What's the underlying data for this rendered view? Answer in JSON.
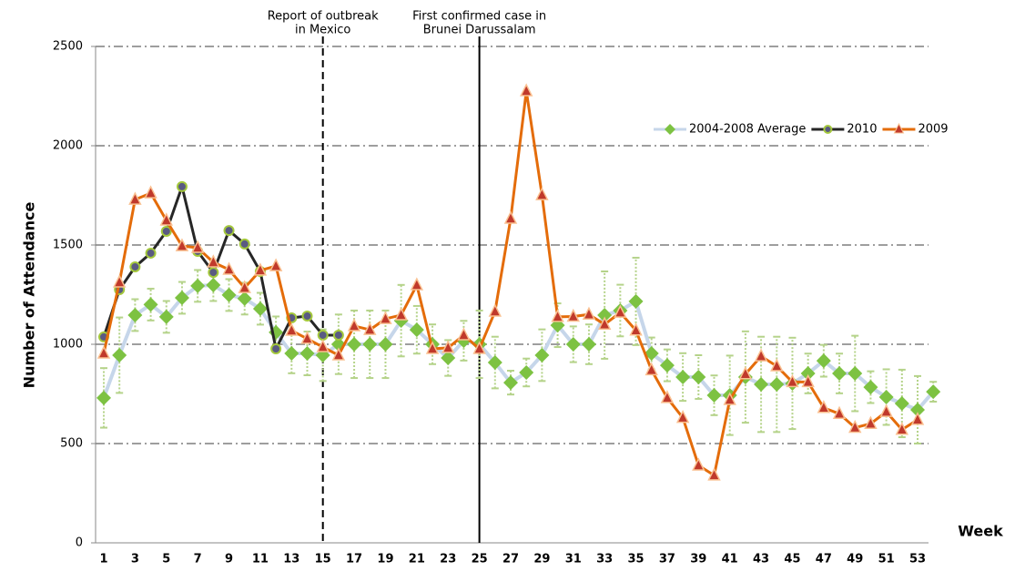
{
  "chart_data": {
    "type": "line",
    "y_label": "Number of Attendance",
    "x_label": "Week",
    "categories": [
      "1",
      null,
      "3",
      null,
      "5",
      null,
      "7",
      null,
      "9",
      null,
      "11",
      null,
      "13",
      null,
      "15",
      null,
      "17",
      null,
      "19",
      null,
      "21",
      null,
      "23",
      null,
      "25",
      null,
      "27",
      null,
      "29",
      null,
      "31",
      null,
      "33",
      null,
      "35",
      null,
      "37",
      null,
      "39",
      null,
      "41",
      null,
      "43",
      null,
      "45",
      null,
      "47",
      null,
      "49",
      null,
      "51",
      null,
      "53",
      null
    ],
    "ylim": [
      0,
      2500
    ],
    "yticks": [
      0,
      500,
      1000,
      1500,
      2000,
      2500
    ],
    "grid": true,
    "legend": "upper right",
    "annotations": [
      {
        "lines": [
          "Report of outbreak",
          "in Mexico"
        ],
        "category_index": 14,
        "line_style": "dashed"
      },
      {
        "lines": [
          "First confirmed case in",
          "Brunei Darussalam"
        ],
        "category_index": 24,
        "line_style": "solid"
      }
    ],
    "series": [
      {
        "name": "2004-2008 Average",
        "color": "#c6d6ea",
        "marker": "diamond",
        "marker_color": "#7dc242",
        "error_color": "#b5d38a",
        "values": [
          730,
          945,
          1147,
          1200,
          1138,
          1234,
          1294,
          1298,
          1248,
          1230,
          1179,
          1060,
          954,
          954,
          945,
          1000,
          1000,
          1000,
          1000,
          1119,
          1073,
          1000,
          931,
          1018,
          1000,
          908,
          807,
          858,
          945,
          1096,
          1000,
          1000,
          1147,
          1170,
          1216,
          954,
          894,
          835,
          835,
          743,
          743,
          835,
          798,
          798,
          803,
          853,
          917,
          853,
          853,
          784,
          734,
          702,
          670,
          761
        ],
        "errors": [
          150,
          190,
          80,
          80,
          80,
          80,
          80,
          80,
          80,
          80,
          80,
          80,
          100,
          110,
          130,
          150,
          170,
          170,
          170,
          180,
          120,
          100,
          90,
          100,
          170,
          130,
          60,
          70,
          130,
          110,
          90,
          100,
          220,
          130,
          220,
          80,
          80,
          120,
          110,
          100,
          200,
          230,
          240,
          240,
          230,
          100,
          80,
          100,
          190,
          80,
          140,
          170,
          170,
          50
        ]
      },
      {
        "name": "2010",
        "color": "#262626",
        "marker": "circle",
        "marker_color": "#5a5a82",
        "marker_edge": "#a4c83c",
        "values": [
          1037,
          1275,
          1390,
          1459,
          1569,
          1794,
          1468,
          1362,
          1573,
          1505,
          1367,
          977,
          1133,
          1142,
          1046,
          1046,
          null,
          null,
          null,
          null,
          null,
          null,
          null,
          null,
          null,
          null,
          null,
          null,
          null,
          null,
          null,
          null,
          null,
          null,
          null,
          null,
          null,
          null,
          null,
          null,
          null,
          null,
          null,
          null,
          null,
          null,
          null,
          null,
          null,
          null,
          null,
          null,
          null,
          null
        ]
      },
      {
        "name": "2009",
        "color": "#e46c0a",
        "marker": "triangle",
        "marker_color": "#c0392b",
        "marker_edge": "#fac090",
        "values": [
          954,
          1312,
          1729,
          1761,
          1624,
          1495,
          1486,
          1413,
          1376,
          1284,
          1372,
          1394,
          1069,
          1028,
          986,
          945,
          1092,
          1073,
          1128,
          1147,
          1298,
          977,
          982,
          1046,
          977,
          1165,
          1633,
          2275,
          1752,
          1138,
          1140,
          1150,
          1100,
          1160,
          1070,
          870,
          730,
          630,
          390,
          340,
          720,
          850,
          940,
          890,
          810,
          810,
          680,
          650,
          580,
          600,
          660,
          570,
          620,
          null
        ]
      }
    ]
  }
}
